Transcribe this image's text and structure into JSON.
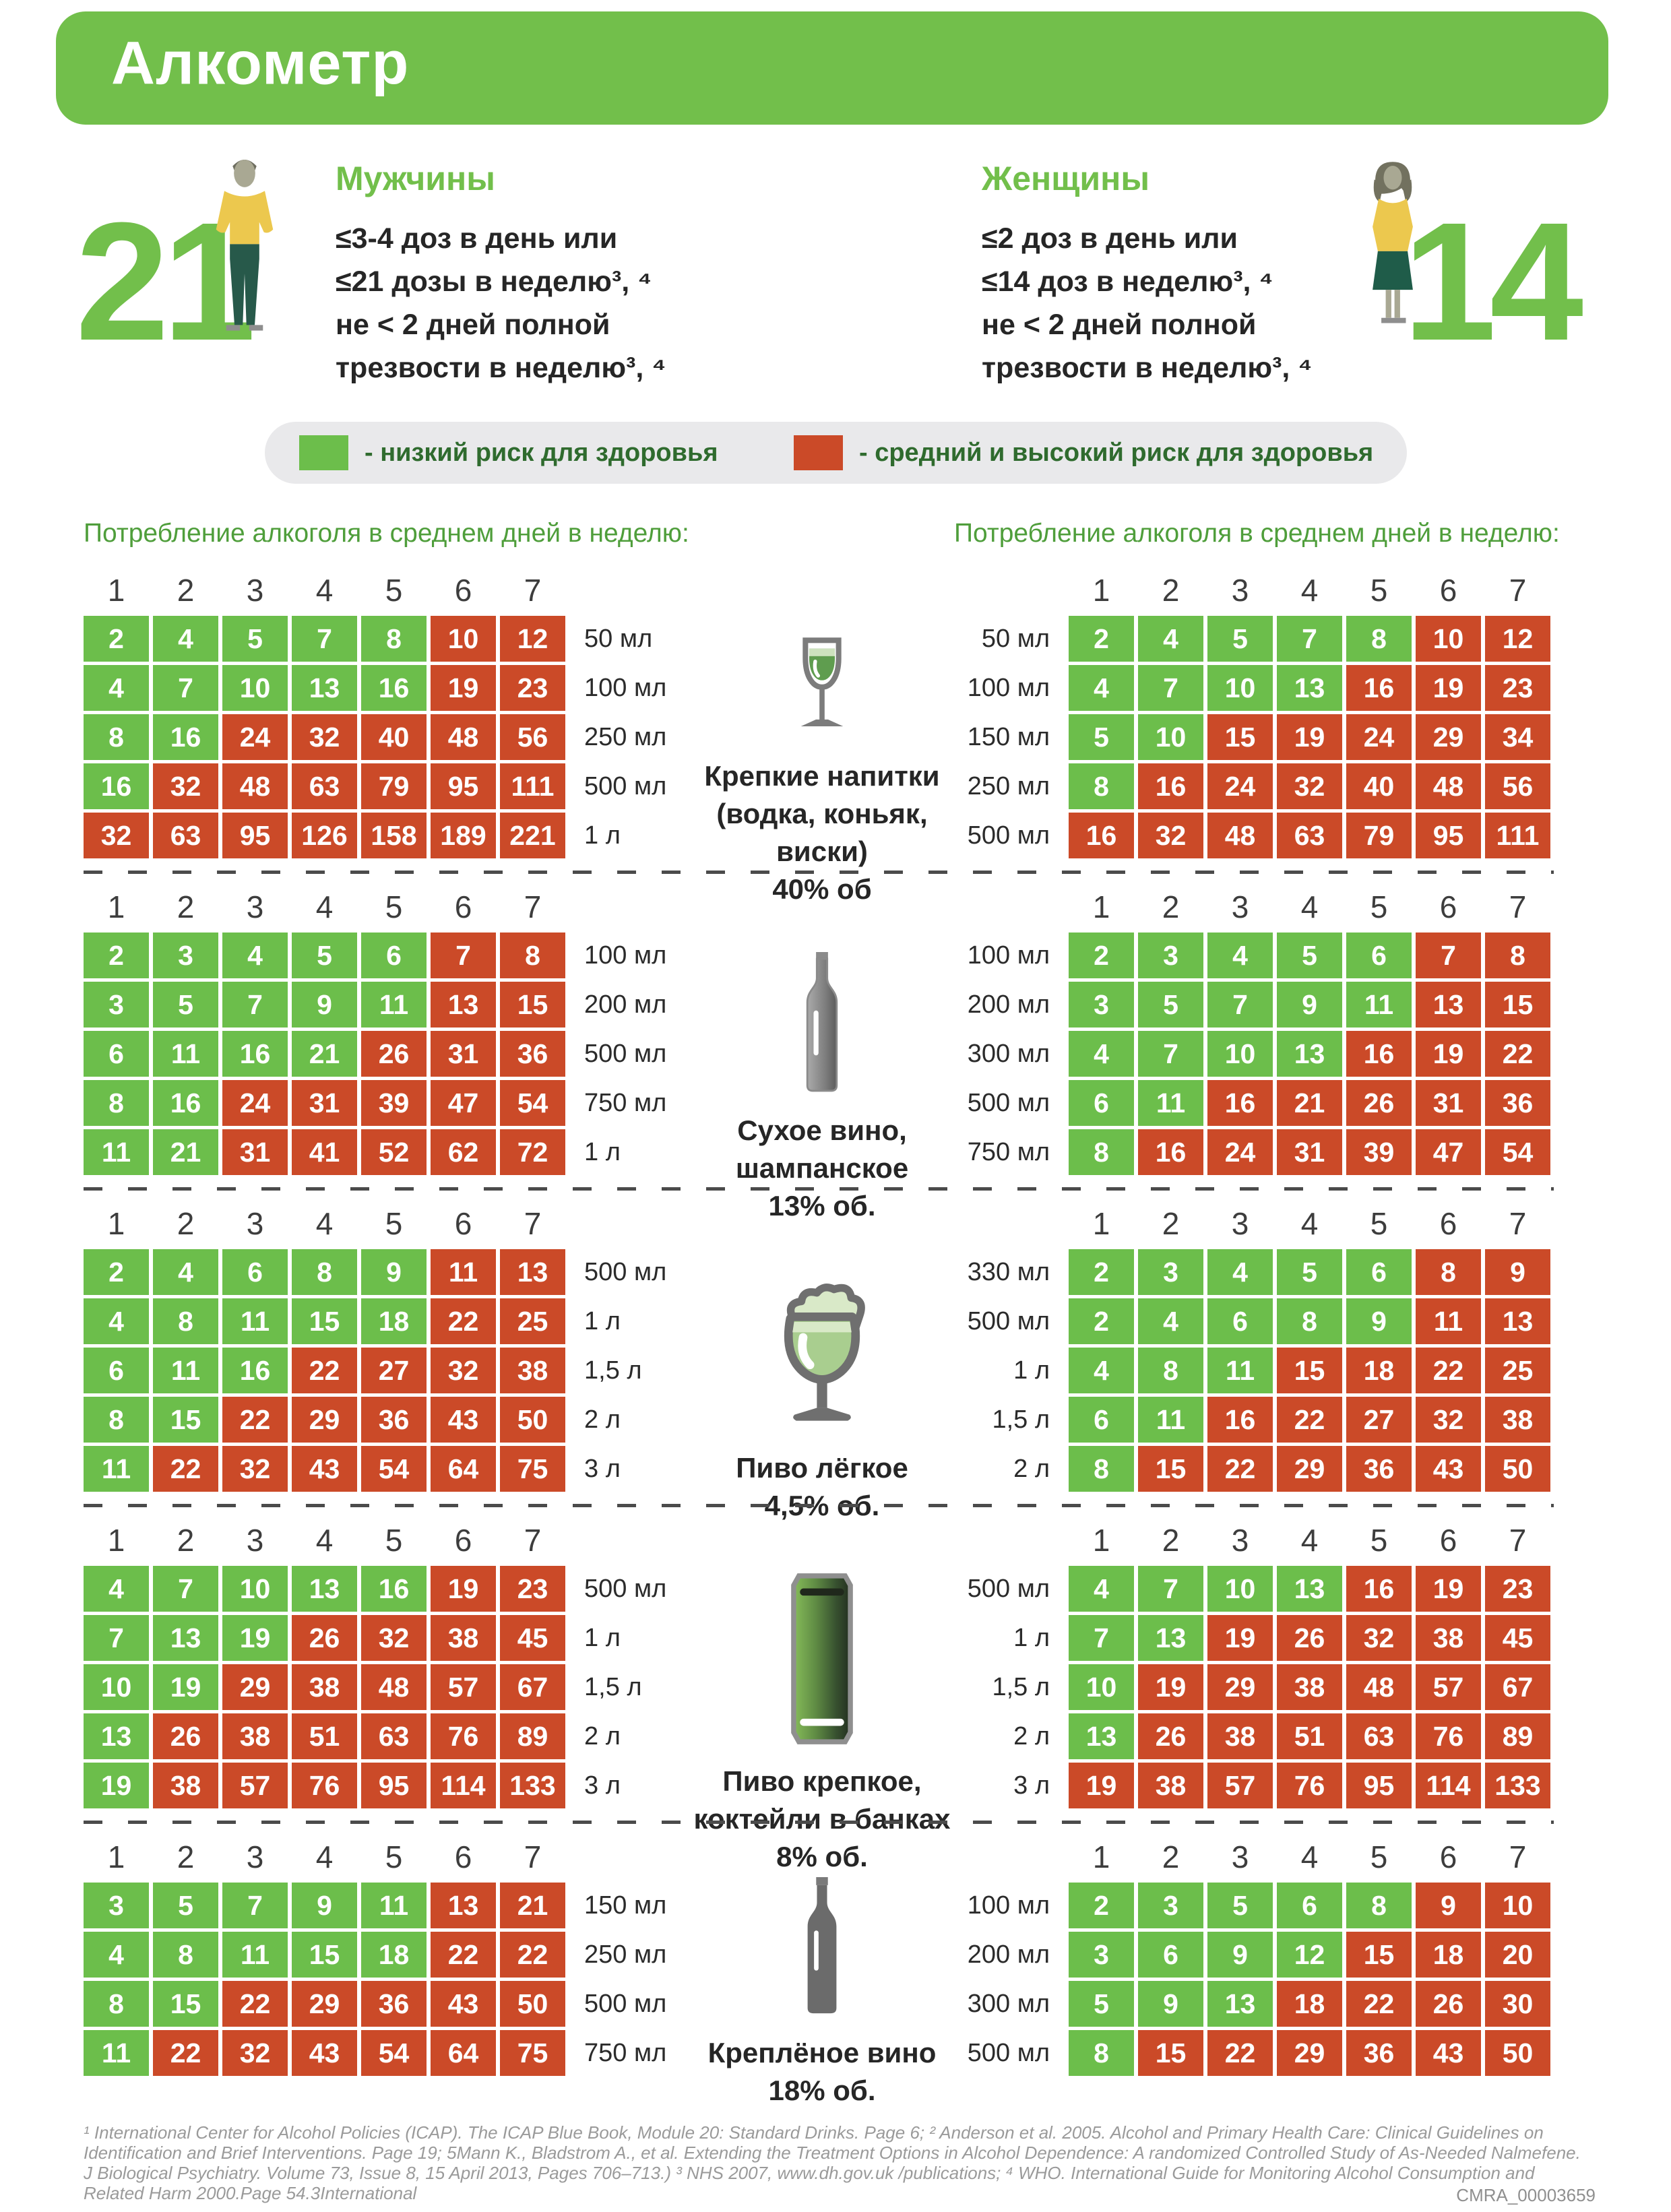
{
  "title": "Алкометр",
  "men": {
    "label": "Мужчины",
    "limit": "21",
    "rules": "≤3-4 доз в день или\n≤21 дозы в неделю³, ⁴\nне < 2 дней полной\nтрезвости в неделю³, ⁴"
  },
  "women": {
    "label": "Женщины",
    "limit": "14",
    "rules": "≤2 доз в день или\n≤14 доз в неделю³, ⁴\nне < 2 дней полной\nтрезвости в неделю³, ⁴"
  },
  "legend": {
    "low": "- низкий риск для здоровья",
    "high": "- средний и высокий риск для здоровья",
    "low_color": "#6CBE4B",
    "high_color": "#CB4A28"
  },
  "consumption_heading": "Потребление алкоголя в среднем дней в неделю:",
  "days": [
    "1",
    "2",
    "3",
    "4",
    "5",
    "6",
    "7"
  ],
  "chart_data": {
    "type": "heatmap",
    "legend_note": "green = low health risk, red = medium/high health risk; columns = days of drinking per week (1-7), rows = volume per day, cell value = standard doses per week",
    "sections": [
      {
        "id": "spirits",
        "icon": "wine-glass",
        "label": "Крепкие напитки\n(водка, коньяк,\nвиски)\n40% об",
        "men_rows": [
          {
            "label": "50 мл",
            "values": [
              2,
              4,
              5,
              7,
              8,
              10,
              12
            ],
            "green": 5
          },
          {
            "label": "100 мл",
            "values": [
              4,
              7,
              10,
              13,
              16,
              19,
              23
            ],
            "green": 5
          },
          {
            "label": "250 мл",
            "values": [
              8,
              16,
              24,
              32,
              40,
              48,
              56
            ],
            "green": 2
          },
          {
            "label": "500 мл",
            "values": [
              16,
              32,
              48,
              63,
              79,
              95,
              111
            ],
            "green": 1
          },
          {
            "label": "1 л",
            "values": [
              32,
              63,
              95,
              126,
              158,
              189,
              221
            ],
            "green": 0
          }
        ],
        "women_rows": [
          {
            "label": "50 мл",
            "values": [
              2,
              4,
              5,
              7,
              8,
              10,
              12
            ],
            "green": 5
          },
          {
            "label": "100 мл",
            "values": [
              4,
              7,
              10,
              13,
              16,
              19,
              23
            ],
            "green": 4
          },
          {
            "label": "150 мл",
            "values": [
              5,
              10,
              15,
              19,
              24,
              29,
              34
            ],
            "green": 2
          },
          {
            "label": "250 мл",
            "values": [
              8,
              16,
              24,
              32,
              40,
              48,
              56
            ],
            "green": 1
          },
          {
            "label": "500 мл",
            "values": [
              16,
              32,
              48,
              63,
              79,
              95,
              111
            ],
            "green": 0
          }
        ]
      },
      {
        "id": "dry-wine",
        "icon": "wine-bottle",
        "label": "Сухое вино,\nшампанское\n13% об.",
        "men_rows": [
          {
            "label": "100 мл",
            "values": [
              2,
              3,
              4,
              5,
              6,
              7,
              8
            ],
            "green": 5
          },
          {
            "label": "200 мл",
            "values": [
              3,
              5,
              7,
              9,
              11,
              13,
              15
            ],
            "green": 5
          },
          {
            "label": "500 мл",
            "values": [
              6,
              11,
              16,
              21,
              26,
              31,
              36
            ],
            "green": 4
          },
          {
            "label": "750 мл",
            "values": [
              8,
              16,
              24,
              31,
              39,
              47,
              54
            ],
            "green": 2
          },
          {
            "label": "1 л",
            "values": [
              11,
              21,
              31,
              41,
              52,
              62,
              72
            ],
            "green": 2
          }
        ],
        "women_rows": [
          {
            "label": "100 мл",
            "values": [
              2,
              3,
              4,
              5,
              6,
              7,
              8
            ],
            "green": 5
          },
          {
            "label": "200 мл",
            "values": [
              3,
              5,
              7,
              9,
              11,
              13,
              15
            ],
            "green": 5
          },
          {
            "label": "300 мл",
            "values": [
              4,
              7,
              10,
              13,
              16,
              19,
              22
            ],
            "green": 4
          },
          {
            "label": "500 мл",
            "values": [
              6,
              11,
              16,
              21,
              26,
              31,
              36
            ],
            "green": 2
          },
          {
            "label": "750 мл",
            "values": [
              8,
              16,
              24,
              31,
              39,
              47,
              54
            ],
            "green": 1
          }
        ]
      },
      {
        "id": "light-beer",
        "icon": "beer-glass",
        "label": "Пиво лёгкое\n4,5% об.",
        "men_rows": [
          {
            "label": "500 мл",
            "values": [
              2,
              4,
              6,
              8,
              9,
              11,
              13
            ],
            "green": 5
          },
          {
            "label": "1 л",
            "values": [
              4,
              8,
              11,
              15,
              18,
              22,
              25
            ],
            "green": 5
          },
          {
            "label": "1,5 л",
            "values": [
              6,
              11,
              16,
              22,
              27,
              32,
              38
            ],
            "green": 3
          },
          {
            "label": "2 л",
            "values": [
              8,
              15,
              22,
              29,
              36,
              43,
              50
            ],
            "green": 2
          },
          {
            "label": "3 л",
            "values": [
              11,
              22,
              32,
              43,
              54,
              64,
              75
            ],
            "green": 1
          }
        ],
        "women_rows": [
          {
            "label": "330 мл",
            "values": [
              2,
              3,
              4,
              5,
              6,
              8,
              9
            ],
            "green": 5
          },
          {
            "label": "500 мл",
            "values": [
              2,
              4,
              6,
              8,
              9,
              11,
              13
            ],
            "green": 5
          },
          {
            "label": "1 л",
            "values": [
              4,
              8,
              11,
              15,
              18,
              22,
              25
            ],
            "green": 3
          },
          {
            "label": "1,5 л",
            "values": [
              6,
              11,
              16,
              22,
              27,
              32,
              38
            ],
            "green": 2
          },
          {
            "label": "2 л",
            "values": [
              8,
              15,
              22,
              29,
              36,
              43,
              50
            ],
            "green": 1
          }
        ]
      },
      {
        "id": "strong-beer",
        "icon": "beer-can",
        "label": "Пиво крепкое,\nкоктейли в банках\n8% об.",
        "men_rows": [
          {
            "label": "500 мл",
            "values": [
              4,
              7,
              10,
              13,
              16,
              19,
              23
            ],
            "green": 5
          },
          {
            "label": "1 л",
            "values": [
              7,
              13,
              19,
              26,
              32,
              38,
              45
            ],
            "green": 3
          },
          {
            "label": "1,5 л",
            "values": [
              10,
              19,
              29,
              38,
              48,
              57,
              67
            ],
            "green": 2
          },
          {
            "label": "2 л",
            "values": [
              13,
              26,
              38,
              51,
              63,
              76,
              89
            ],
            "green": 1
          },
          {
            "label": "3 л",
            "values": [
              19,
              38,
              57,
              76,
              95,
              114,
              133
            ],
            "green": 1
          }
        ],
        "women_rows": [
          {
            "label": "500 мл",
            "values": [
              4,
              7,
              10,
              13,
              16,
              19,
              23
            ],
            "green": 4
          },
          {
            "label": "1 л",
            "values": [
              7,
              13,
              19,
              26,
              32,
              38,
              45
            ],
            "green": 2
          },
          {
            "label": "1,5 л",
            "values": [
              10,
              19,
              29,
              38,
              48,
              57,
              67
            ],
            "green": 1
          },
          {
            "label": "2 л",
            "values": [
              13,
              26,
              38,
              51,
              63,
              76,
              89
            ],
            "green": 1
          },
          {
            "label": "3 л",
            "values": [
              19,
              38,
              57,
              76,
              95,
              114,
              133
            ],
            "green": 0
          }
        ]
      },
      {
        "id": "fortified-wine",
        "icon": "dark-bottle",
        "label": "Креплёное вино\n18% об.",
        "men_rows": [
          {
            "label": "150 мл",
            "values": [
              3,
              5,
              7,
              9,
              11,
              13,
              21
            ],
            "green": 5
          },
          {
            "label": "250 мл",
            "values": [
              4,
              8,
              11,
              15,
              18,
              22,
              22
            ],
            "green": 5
          },
          {
            "label": "500 мл",
            "values": [
              8,
              15,
              22,
              29,
              36,
              43,
              50
            ],
            "green": 2
          },
          {
            "label": "750 мл",
            "values": [
              11,
              22,
              32,
              43,
              54,
              64,
              75
            ],
            "green": 1
          }
        ],
        "women_rows": [
          {
            "label": "100 мл",
            "values": [
              2,
              3,
              5,
              6,
              8,
              9,
              10
            ],
            "green": 5
          },
          {
            "label": "200 мл",
            "values": [
              3,
              6,
              9,
              12,
              15,
              18,
              20
            ],
            "green": 4
          },
          {
            "label": "300 мл",
            "values": [
              5,
              9,
              13,
              18,
              22,
              26,
              30
            ],
            "green": 3
          },
          {
            "label": "500 мл",
            "values": [
              8,
              15,
              22,
              29,
              36,
              43,
              50
            ],
            "green": 1
          }
        ]
      }
    ]
  },
  "footer": {
    "references": "¹ International Center for Alcohol Policies (ICAP). The ICAP Blue Book, Module 20: Standard Drinks. Page 6; ² Anderson et al. 2005. Alcohol and Primary Health Care: Clinical Guidelines on\nIdentification and Brief Interventions. Page 19; 5Mann K., Bladstrom A., et al. Extending the Treatment Options in Alcohol Dependence: A randomized Controlled Study of As-Needed Nalmefene.\nJ Biological Psychiatry. Volume 73, Issue 8, 15 April 2013, Pages 706–713.) ³ NHS 2007, www.dh.gov.uk /publications; ⁴ WHO. International Guide for Monitoring Alcohol Consumption and\nRelated Harm 2000.Page 54.3International",
    "doc_id": "CMRA_00003659"
  }
}
